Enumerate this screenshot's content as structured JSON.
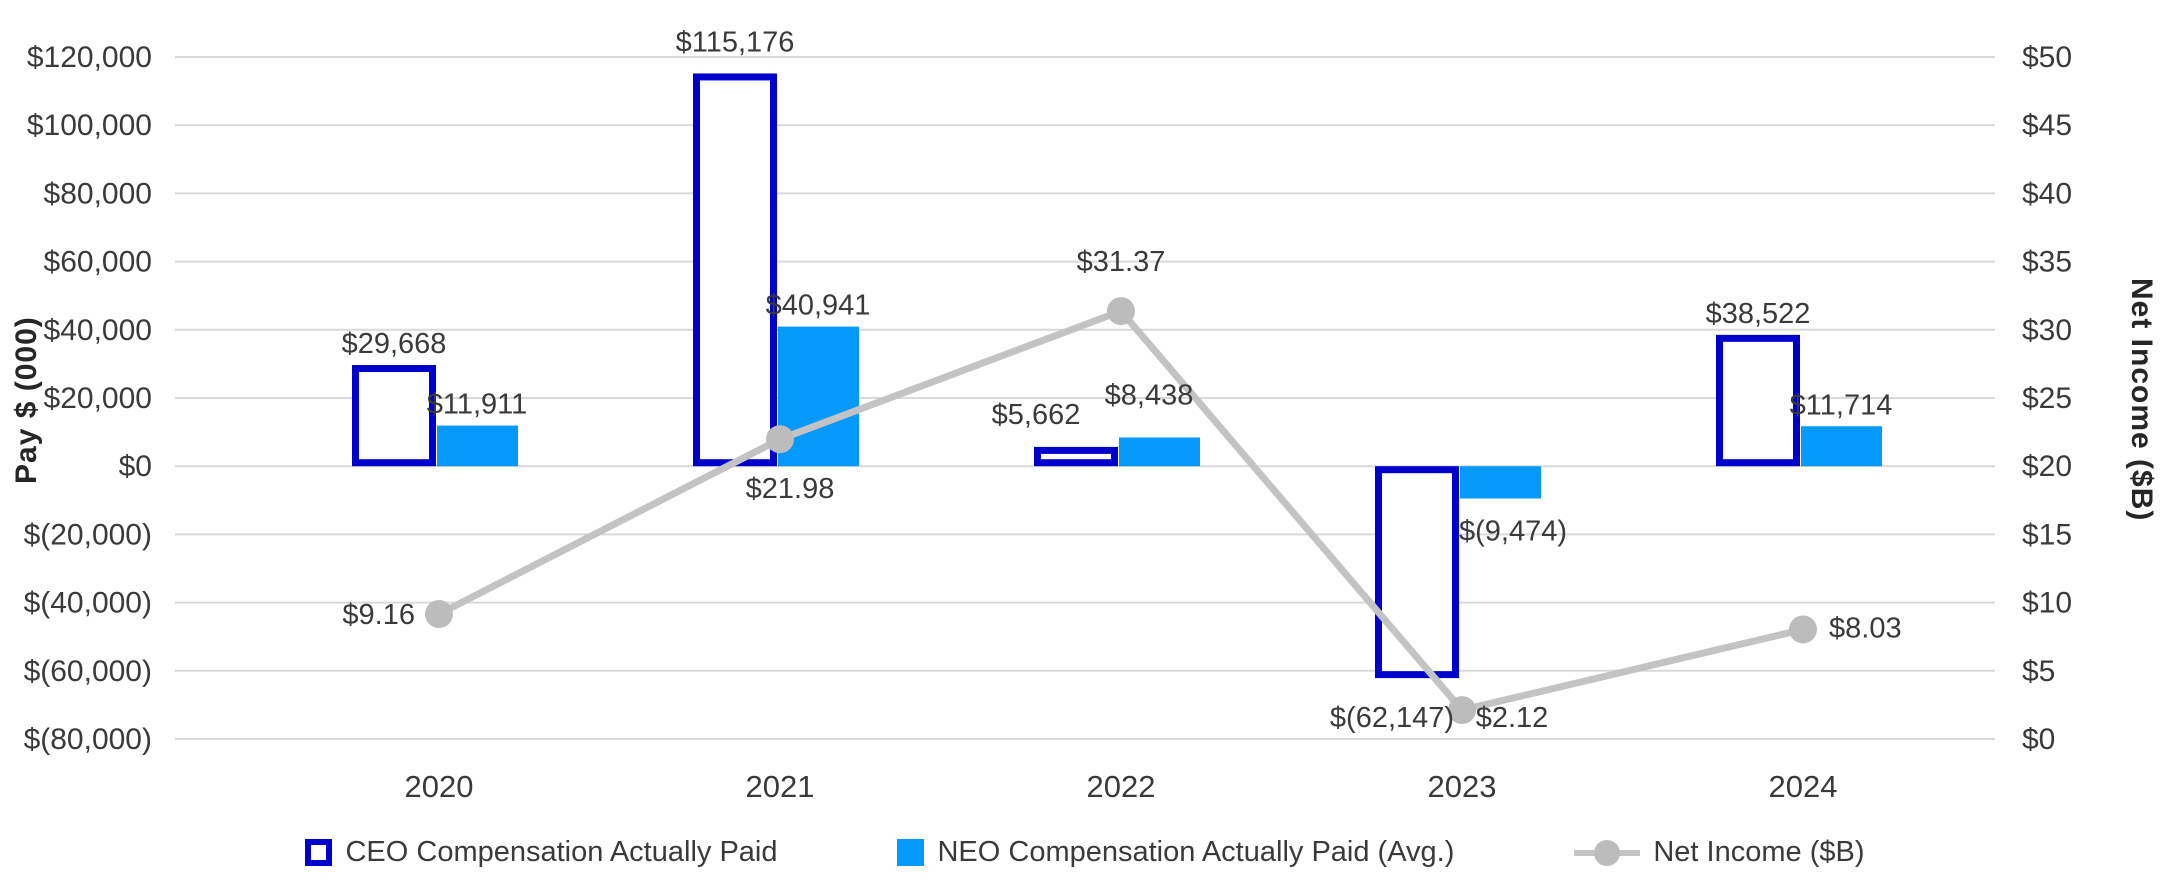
{
  "chart_data": {
    "type": "combo-bar-line",
    "title": "",
    "categories": [
      "2020",
      "2021",
      "2022",
      "2023",
      "2024"
    ],
    "series": [
      {
        "name": "CEO Compensation Actually Paid",
        "type": "bar",
        "axis": "left",
        "style": "outline",
        "color": "#0000CC",
        "values": [
          29668,
          115176,
          5662,
          -62147,
          38522
        ],
        "data_labels": [
          "$29,668",
          "$115,176",
          "$5,662",
          "$(62,147)",
          "$38,522"
        ]
      },
      {
        "name": "NEO Compensation Actually Paid (Avg.)",
        "type": "bar",
        "axis": "left",
        "style": "solid",
        "color": "#0599FA",
        "values": [
          11911,
          40941,
          8438,
          -9474,
          11714
        ],
        "data_labels": [
          "$11,911",
          "$40,941",
          "$8,438",
          "$(9,474)",
          "$11,714"
        ]
      },
      {
        "name": "Net Income ($B)",
        "type": "line",
        "axis": "right",
        "style": "line-marker",
        "color": "#BFBFBF",
        "values": [
          9.16,
          21.98,
          31.37,
          2.12,
          8.03
        ],
        "data_labels": [
          "$9.16",
          "$21.98",
          "$31.37",
          "$2.12",
          "$8.03"
        ],
        "label_placement": [
          "left",
          "below",
          "above",
          "below-right",
          "right"
        ]
      }
    ],
    "left_axis": {
      "title": "Pay $ (000)",
      "min": -80000,
      "max": 120000,
      "step": 20000,
      "tick_labels": [
        "$120,000",
        "$100,000",
        "$80,000",
        "$60,000",
        "$40,000",
        "$20,000",
        "$0",
        "$(20,000)",
        "$(40,000)",
        "$(60,000)",
        "$(80,000)"
      ]
    },
    "right_axis": {
      "title": "Net Income ($B)",
      "min": 0,
      "max": 50,
      "step": 5,
      "tick_labels": [
        "$50",
        "$45",
        "$40",
        "$35",
        "$30",
        "$25",
        "$20",
        "$15",
        "$10",
        "$5",
        "$0"
      ]
    },
    "grid": true,
    "legend_position": "bottom",
    "colors": {
      "ceo_outline": "#0000CC",
      "neo_fill": "#0599FA",
      "net_income_line": "#C3C3C3",
      "net_income_marker": "#BCBCBC",
      "gridline": "#D9D9D9",
      "tick_text": "#3a3a3a",
      "label_text": "#3a3a3a",
      "axis_title_text": "#262626",
      "background": "#FFFFFF"
    }
  }
}
